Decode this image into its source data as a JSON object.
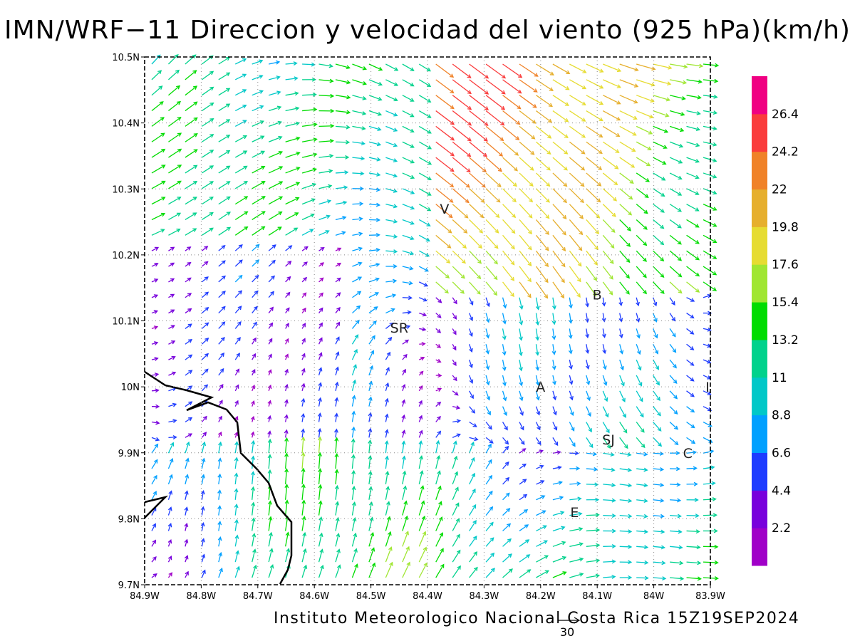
{
  "title": "IMN/WRF−11 Direccion y velocidad del viento (925 hPa)(km/h)",
  "footer": "Instituto Meteorologico Nacional Costa Rica 15Z19SEP2024",
  "reference_vector_label": "30",
  "map": {
    "lon_range": [
      -84.9,
      -83.9
    ],
    "lat_range": [
      9.7,
      10.5
    ],
    "grid": "dotted",
    "lon_ticks": [
      "84.9W",
      "84.8W",
      "84.7W",
      "84.6W",
      "84.5W",
      "84.4W",
      "84.3W",
      "84.2W",
      "84.1W",
      "84W",
      "83.9W"
    ],
    "lat_ticks": [
      "9.7N",
      "9.8N",
      "9.9N",
      "10N",
      "10.1N",
      "10.2N",
      "10.3N",
      "10.4N",
      "10.5N"
    ],
    "places": [
      {
        "label": "V",
        "lon": -84.37,
        "lat": 10.27
      },
      {
        "label": "B",
        "lon": -84.1,
        "lat": 10.14
      },
      {
        "label": "SR",
        "lon": -84.45,
        "lat": 10.09
      },
      {
        "label": "A",
        "lon": -84.2,
        "lat": 10.0
      },
      {
        "label": "SJ",
        "lon": -84.08,
        "lat": 9.92
      },
      {
        "label": "C",
        "lon": -83.94,
        "lat": 9.9
      },
      {
        "label": "E",
        "lon": -84.14,
        "lat": 9.81
      },
      {
        "label": "I",
        "lon": -83.905,
        "lat": 10.0
      }
    ]
  },
  "colorbar": {
    "labels": [
      "2.2",
      "4.4",
      "6.6",
      "8.8",
      "11",
      "13.2",
      "15.4",
      "17.6",
      "19.8",
      "22",
      "24.2",
      "26.4"
    ],
    "colors": [
      "#a000c8",
      "#7800dc",
      "#1e3cff",
      "#00a0ff",
      "#00c8c8",
      "#00d28c",
      "#00dc00",
      "#a0e632",
      "#e6dc32",
      "#e6af2d",
      "#f08228",
      "#fa3c3c",
      "#f00082"
    ]
  }
}
